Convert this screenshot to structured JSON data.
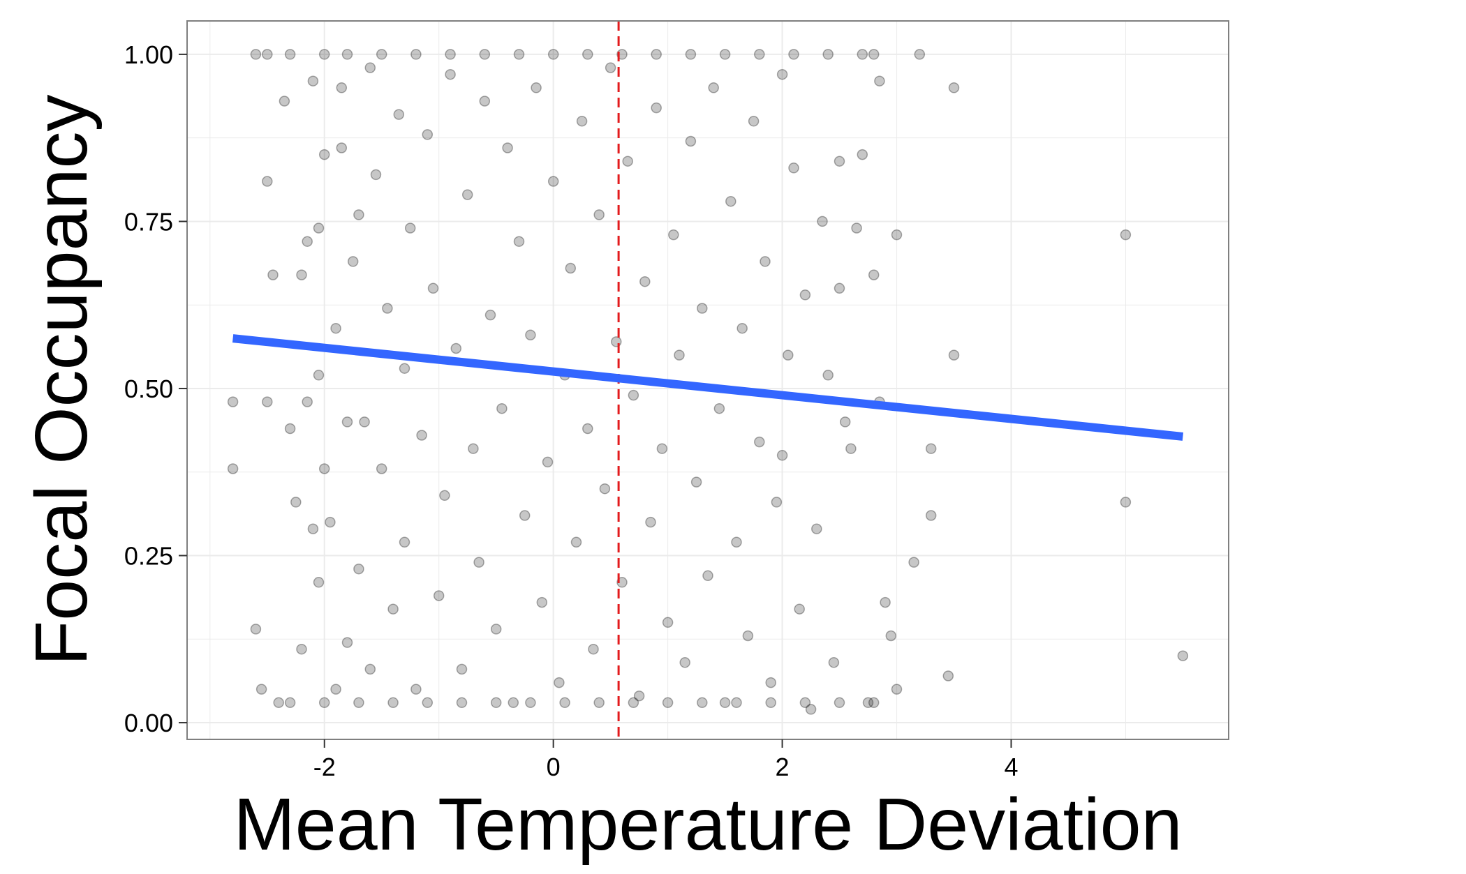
{
  "chart_data": {
    "type": "scatter",
    "title": "",
    "xlabel": "Mean Temperature Deviation",
    "ylabel": "Focal Occupancy",
    "xlim": [
      -3.2,
      5.9
    ],
    "ylim": [
      -0.025,
      1.05
    ],
    "x_ticks": [
      -2,
      0,
      2,
      4
    ],
    "x_tick_labels": [
      "-2",
      "0",
      "2",
      "4"
    ],
    "y_ticks": [
      0,
      0.25,
      0.5,
      0.75,
      1
    ],
    "y_tick_labels": [
      "0.00",
      "0.25",
      "0.50",
      "0.75",
      "1.00"
    ],
    "grid": true,
    "legend": "none",
    "colors": {
      "points": "#000000",
      "trend": "#3366FF",
      "reference_line": "#E31A1C",
      "grid": "#EBEBEB",
      "panel_border": "#7F7F7F"
    },
    "reference_line": {
      "orientation": "vertical",
      "x": 0.57,
      "style": "dashed"
    },
    "trend_line": {
      "type": "linear",
      "x": [
        -2.8,
        5.5
      ],
      "y": [
        0.575,
        0.428
      ]
    },
    "points": [
      [
        -2.8,
        0.48
      ],
      [
        -2.8,
        0.38
      ],
      [
        -2.6,
        0.14
      ],
      [
        -2.55,
        0.05
      ],
      [
        -2.5,
        0.81
      ],
      [
        -2.5,
        0.48
      ],
      [
        -2.45,
        0.67
      ],
      [
        -2.4,
        0.03
      ],
      [
        -2.35,
        0.93
      ],
      [
        -2.3,
        0.44
      ],
      [
        -2.25,
        0.33
      ],
      [
        -2.2,
        0.67
      ],
      [
        -2.2,
        0.11
      ],
      [
        -2.15,
        0.72
      ],
      [
        -2.15,
        0.48
      ],
      [
        -2.1,
        0.96
      ],
      [
        -2.1,
        0.29
      ],
      [
        -2.05,
        0.74
      ],
      [
        -2.05,
        0.52
      ],
      [
        -2.05,
        0.21
      ],
      [
        -2.0,
        0.85
      ],
      [
        -2.0,
        0.38
      ],
      [
        -1.95,
        0.3
      ],
      [
        -1.9,
        0.59
      ],
      [
        -1.9,
        0.05
      ],
      [
        -1.85,
        0.95
      ],
      [
        -1.85,
        0.86
      ],
      [
        -1.8,
        0.45
      ],
      [
        -1.8,
        0.12
      ],
      [
        -1.75,
        0.69
      ],
      [
        -1.7,
        0.23
      ],
      [
        -1.7,
        0.76
      ],
      [
        -1.65,
        0.45
      ],
      [
        -1.6,
        0.08
      ],
      [
        -1.6,
        0.98
      ],
      [
        -1.55,
        0.82
      ],
      [
        -1.5,
        0.38
      ],
      [
        -1.45,
        0.62
      ],
      [
        -1.4,
        0.17
      ],
      [
        -1.35,
        0.91
      ],
      [
        -1.3,
        0.53
      ],
      [
        -1.3,
        0.27
      ],
      [
        -1.25,
        0.74
      ],
      [
        -1.2,
        0.05
      ],
      [
        -1.15,
        0.43
      ],
      [
        -1.1,
        0.88
      ],
      [
        -1.05,
        0.65
      ],
      [
        -1.0,
        0.19
      ],
      [
        -0.95,
        0.34
      ],
      [
        -0.9,
        0.97
      ],
      [
        -0.85,
        0.56
      ],
      [
        -0.8,
        0.08
      ],
      [
        -0.75,
        0.79
      ],
      [
        -0.7,
        0.41
      ],
      [
        -0.65,
        0.24
      ],
      [
        -0.6,
        0.93
      ],
      [
        -0.55,
        0.61
      ],
      [
        -0.5,
        0.14
      ],
      [
        -0.45,
        0.47
      ],
      [
        -0.4,
        0.86
      ],
      [
        -0.35,
        0.03
      ],
      [
        -0.3,
        0.72
      ],
      [
        -0.25,
        0.31
      ],
      [
        -0.2,
        0.58
      ],
      [
        -0.15,
        0.95
      ],
      [
        -0.1,
        0.18
      ],
      [
        -0.05,
        0.39
      ],
      [
        0.0,
        0.81
      ],
      [
        0.05,
        0.06
      ],
      [
        0.1,
        0.52
      ],
      [
        0.15,
        0.68
      ],
      [
        0.2,
        0.27
      ],
      [
        0.25,
        0.9
      ],
      [
        0.3,
        0.44
      ],
      [
        0.35,
        0.11
      ],
      [
        0.4,
        0.76
      ],
      [
        0.45,
        0.35
      ],
      [
        0.5,
        0.98
      ],
      [
        0.55,
        0.57
      ],
      [
        0.6,
        0.21
      ],
      [
        0.65,
        0.84
      ],
      [
        0.7,
        0.49
      ],
      [
        0.75,
        0.04
      ],
      [
        0.8,
        0.66
      ],
      [
        0.85,
        0.3
      ],
      [
        0.9,
        0.92
      ],
      [
        0.95,
        0.41
      ],
      [
        1.0,
        0.15
      ],
      [
        1.05,
        0.73
      ],
      [
        1.1,
        0.55
      ],
      [
        1.15,
        0.09
      ],
      [
        1.2,
        0.87
      ],
      [
        1.25,
        0.36
      ],
      [
        1.3,
        0.62
      ],
      [
        1.35,
        0.22
      ],
      [
        1.4,
        0.95
      ],
      [
        1.45,
        0.47
      ],
      [
        1.5,
        0.03
      ],
      [
        1.55,
        0.78
      ],
      [
        1.6,
        0.27
      ],
      [
        1.65,
        0.59
      ],
      [
        1.7,
        0.13
      ],
      [
        1.75,
        0.9
      ],
      [
        1.8,
        0.42
      ],
      [
        1.85,
        0.69
      ],
      [
        1.9,
        0.06
      ],
      [
        1.95,
        0.33
      ],
      [
        2.0,
        0.97
      ],
      [
        2.0,
        0.4
      ],
      [
        2.05,
        0.55
      ],
      [
        2.1,
        0.83
      ],
      [
        2.15,
        0.17
      ],
      [
        2.2,
        0.64
      ],
      [
        2.25,
        0.02
      ],
      [
        2.3,
        0.29
      ],
      [
        2.35,
        0.75
      ],
      [
        2.4,
        0.52
      ],
      [
        2.45,
        0.09
      ],
      [
        2.5,
        0.84
      ],
      [
        2.5,
        0.65
      ],
      [
        2.55,
        0.45
      ],
      [
        2.6,
        0.41
      ],
      [
        2.65,
        0.74
      ],
      [
        2.7,
        0.85
      ],
      [
        2.75,
        0.03
      ],
      [
        2.8,
        0.67
      ],
      [
        2.85,
        0.48
      ],
      [
        2.85,
        0.96
      ],
      [
        2.9,
        0.18
      ],
      [
        2.95,
        0.13
      ],
      [
        3.0,
        0.05
      ],
      [
        3.0,
        0.73
      ],
      [
        3.15,
        0.24
      ],
      [
        3.2,
        1.0
      ],
      [
        3.3,
        0.41
      ],
      [
        3.3,
        0.31
      ],
      [
        3.5,
        0.55
      ],
      [
        3.5,
        0.95
      ],
      [
        3.45,
        0.07
      ],
      [
        5.0,
        0.73
      ],
      [
        5.0,
        0.33
      ],
      [
        5.5,
        0.1
      ],
      [
        -2.6,
        1.0
      ],
      [
        -2.5,
        1.0
      ],
      [
        -2.3,
        1.0
      ],
      [
        -2.0,
        1.0
      ],
      [
        -1.8,
        1.0
      ],
      [
        -1.5,
        1.0
      ],
      [
        -1.2,
        1.0
      ],
      [
        -0.9,
        1.0
      ],
      [
        -0.6,
        1.0
      ],
      [
        -0.3,
        1.0
      ],
      [
        0.0,
        1.0
      ],
      [
        0.3,
        1.0
      ],
      [
        0.6,
        1.0
      ],
      [
        0.9,
        1.0
      ],
      [
        1.2,
        1.0
      ],
      [
        1.5,
        1.0
      ],
      [
        1.8,
        1.0
      ],
      [
        2.1,
        1.0
      ],
      [
        2.4,
        1.0
      ],
      [
        2.7,
        1.0
      ],
      [
        2.8,
        1.0
      ],
      [
        -2.3,
        0.03
      ],
      [
        -2.0,
        0.03
      ],
      [
        -1.7,
        0.03
      ],
      [
        -1.4,
        0.03
      ],
      [
        -1.1,
        0.03
      ],
      [
        -0.8,
        0.03
      ],
      [
        -0.5,
        0.03
      ],
      [
        -0.2,
        0.03
      ],
      [
        0.1,
        0.03
      ],
      [
        0.4,
        0.03
      ],
      [
        0.7,
        0.03
      ],
      [
        1.0,
        0.03
      ],
      [
        1.3,
        0.03
      ],
      [
        1.6,
        0.03
      ],
      [
        1.9,
        0.03
      ],
      [
        2.2,
        0.03
      ],
      [
        2.5,
        0.03
      ],
      [
        2.8,
        0.03
      ]
    ]
  }
}
